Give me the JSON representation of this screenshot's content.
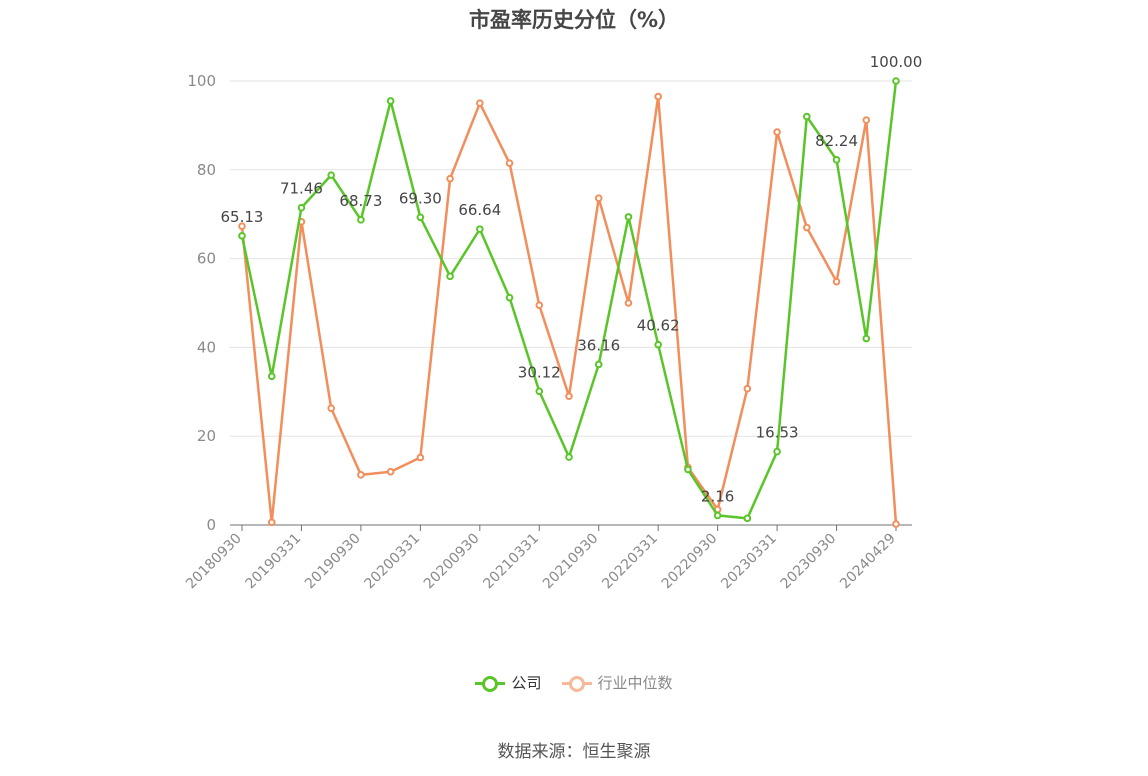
{
  "chart_data": {
    "type": "line",
    "title": "市盈率历史分位（%）",
    "ylim": [
      0,
      100
    ],
    "yticks": [
      0,
      20,
      40,
      60,
      80,
      100
    ],
    "x_tick_labels": [
      "20180930",
      "20190331",
      "20190930",
      "20200331",
      "20200930",
      "20210331",
      "20210930",
      "20220331",
      "20220930",
      "20230331",
      "20230930",
      "20240429"
    ],
    "n_points": 23,
    "series": [
      {
        "name": "公司",
        "color": "#5ac528",
        "values": [
          65.13,
          33.5,
          71.46,
          78.8,
          68.73,
          95.5,
          69.3,
          56.0,
          66.64,
          51.2,
          30.12,
          15.3,
          36.16,
          69.4,
          40.62,
          12.5,
          2.16,
          1.5,
          16.53,
          92.0,
          82.24,
          42.0,
          100.0
        ],
        "labels": {
          "0": "65.13",
          "2": "71.46",
          "4": "68.73",
          "6": "69.30",
          "8": "66.64",
          "10": "30.12",
          "12": "36.16",
          "14": "40.62",
          "16": "2.16",
          "18": "16.53",
          "20": "82.24",
          "22": "100.00"
        }
      },
      {
        "name": "行业中位数",
        "color": "#f28e5b",
        "values": [
          67.3,
          0.6,
          68.3,
          26.3,
          11.3,
          12.0,
          15.2,
          78.0,
          95.0,
          81.5,
          49.5,
          29.0,
          73.6,
          50.0,
          96.5,
          13.0,
          3.5,
          30.7,
          88.5,
          67.0,
          54.8,
          91.2,
          0.2
        ]
      }
    ],
    "grid": "horizontal",
    "legend_position": "bottom-center"
  },
  "legend": {
    "company": "公司",
    "industry": "行业中位数"
  },
  "source_text": "数据来源：恒生聚源"
}
